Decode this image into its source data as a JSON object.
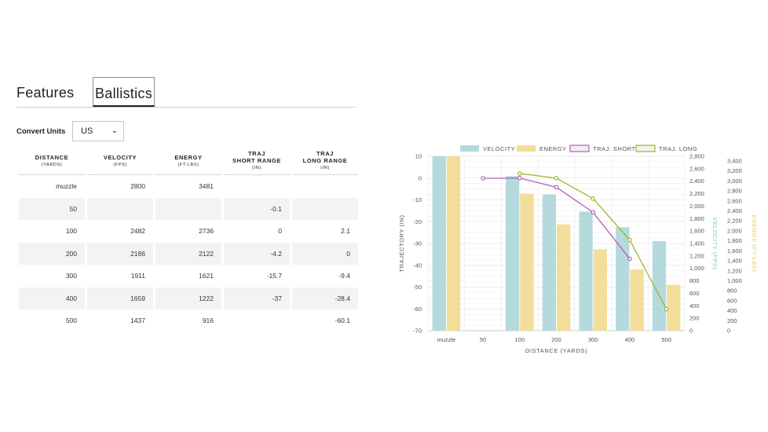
{
  "tabs": {
    "features": "Features",
    "ballistics": "Ballistics"
  },
  "units": {
    "label": "Convert Units",
    "selected": "US"
  },
  "table": {
    "headers": [
      {
        "title": "DISTANCE",
        "sub": "(YARDS)"
      },
      {
        "title": "VELOCITY",
        "sub": "(FPS)"
      },
      {
        "title": "ENERGY",
        "sub": "(FT-LBS)"
      },
      {
        "title": "TRAJ",
        "title2": "SHORT RANGE",
        "sub": "(IN)"
      },
      {
        "title": "TRAJ",
        "title2": "LONG RANGE",
        "sub": "(IN)"
      }
    ],
    "rows": [
      [
        "muzzle",
        "2800",
        "3481",
        "",
        ""
      ],
      [
        "50",
        "",
        "",
        "-0.1",
        ""
      ],
      [
        "100",
        "2482",
        "2736",
        "0",
        "2.1"
      ],
      [
        "200",
        "2186",
        "2122",
        "-4.2",
        "0"
      ],
      [
        "300",
        "1911",
        "1621",
        "-15.7",
        "-9.4"
      ],
      [
        "400",
        "1659",
        "1222",
        "-37",
        "-28.4"
      ],
      [
        "500",
        "1437",
        "916",
        "",
        "-60.1"
      ]
    ]
  },
  "colors": {
    "velocity": "#b4dadd",
    "energy": "#f3dd9a",
    "traj_short": "#b45fb4",
    "traj_long": "#a3b52b"
  },
  "chart_data": {
    "type": "bar",
    "categories": [
      "muzzle",
      "50",
      "100",
      "200",
      "300",
      "400",
      "500"
    ],
    "series": [
      {
        "name": "VELOCITY",
        "kind": "bar",
        "axis": "velocity",
        "values": [
          2800,
          null,
          2482,
          2186,
          1911,
          1659,
          1437
        ]
      },
      {
        "name": "ENERGY",
        "kind": "bar",
        "axis": "energy",
        "values": [
          3481,
          null,
          2736,
          2122,
          1621,
          1222,
          916
        ]
      },
      {
        "name": "TRAJ. SHORT",
        "kind": "line",
        "axis": "trajectory",
        "values": [
          null,
          -0.1,
          0,
          -4.2,
          -15.7,
          -37,
          null
        ]
      },
      {
        "name": "TRAJ. LONG",
        "kind": "line",
        "axis": "trajectory",
        "values": [
          null,
          null,
          2.1,
          0,
          -9.4,
          -28.4,
          -60.1
        ]
      }
    ],
    "xlabel": "DISTANCE (YARDS)",
    "ylabel_left": "TRAJECTORY (IN)",
    "ylabel_velocity": "VELOCITY (FPS)",
    "ylabel_energy": "ENERGY (FT-LBS)",
    "ylim_trajectory": [
      -70,
      10
    ],
    "ylim_velocity": [
      0,
      2800
    ],
    "ylim_energy": [
      0,
      3481
    ],
    "ticks_trajectory": [
      "10",
      "0",
      "-10",
      "-20",
      "-30",
      "-40",
      "-50",
      "-60",
      "-70"
    ],
    "ticks_velocity": [
      "2,800",
      "2,600",
      "2,400",
      "2,200",
      "2,000",
      "1,800",
      "1,600",
      "1,400",
      "1,200",
      "1,000",
      "800",
      "600",
      "400",
      "200",
      "0"
    ],
    "ticks_energy": [
      "3,400",
      "3,200",
      "3,000",
      "2,800",
      "2,600",
      "2,400",
      "2,200",
      "2,000",
      "1,800",
      "1,600",
      "1,400",
      "1,200",
      "1,000",
      "800",
      "600",
      "400",
      "200",
      "0"
    ],
    "legend": [
      "VELOCITY",
      "ENERGY",
      "TRAJ. SHORT",
      "TRAJ. LONG"
    ],
    "legend_position": "top",
    "grid": true
  }
}
